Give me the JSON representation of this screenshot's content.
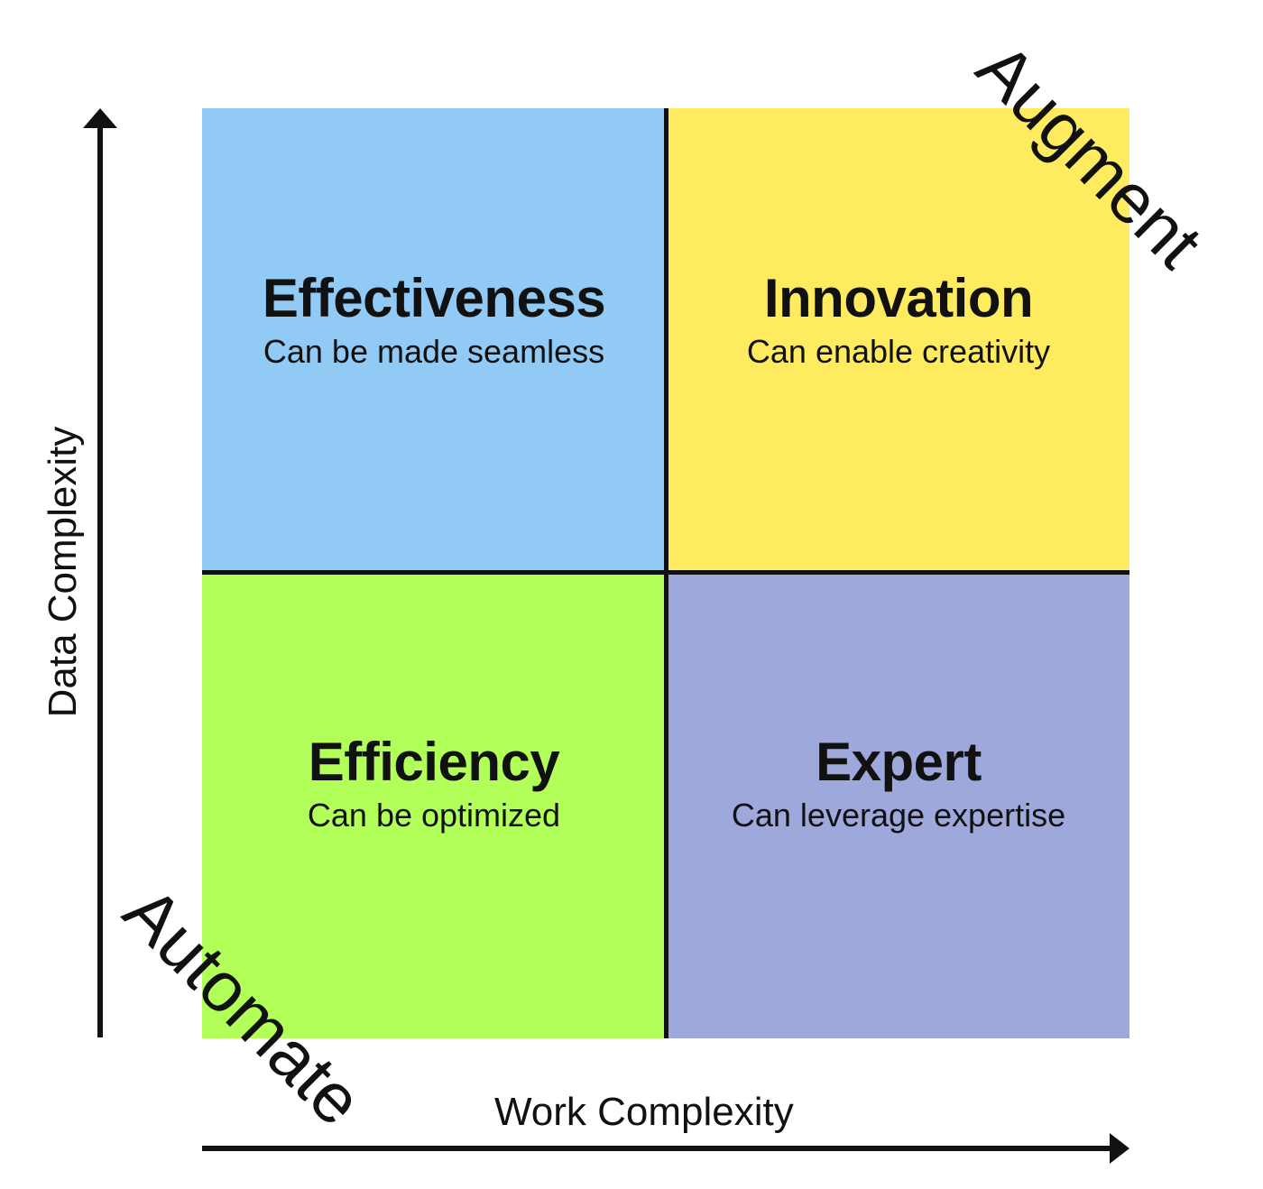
{
  "quadrants": {
    "top_left": {
      "title": "Effectiveness",
      "subtitle": "Can be made seamless",
      "color": "#90CAF5"
    },
    "top_right": {
      "title": "Innovation",
      "subtitle": "Can enable creativity",
      "color": "#FFEB60"
    },
    "bottom_left": {
      "title": "Efficiency",
      "subtitle": "Can be optimized",
      "color": "#B3FF5A"
    },
    "bottom_right": {
      "title": "Expert",
      "subtitle": "Can leverage expertise",
      "color": "#9FA8DA"
    }
  },
  "axes": {
    "x_label": "Work Complexity",
    "y_label": "Data Complexity"
  },
  "diagonal_labels": {
    "top_right": "Augment",
    "bottom_left": "Automate"
  },
  "line_color": "#111111"
}
